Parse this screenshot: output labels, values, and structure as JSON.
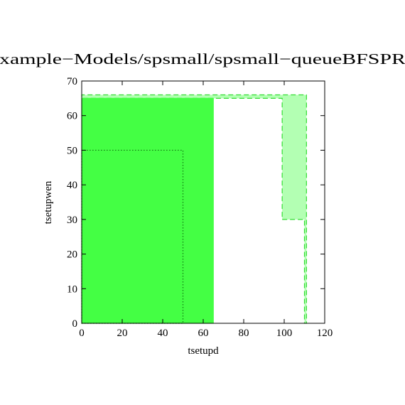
{
  "chart_data": {
    "type": "region",
    "title": "xample−Models/spsmall/spsmall−queueBFSPR",
    "x_label": "tsetupd",
    "y_label": "tsetupwen",
    "xlim": [
      0,
      120
    ],
    "ylim": [
      0,
      70
    ],
    "xticks": [
      0,
      20,
      40,
      60,
      80,
      100,
      120
    ],
    "yticks": [
      0,
      10,
      20,
      30,
      40,
      50,
      60,
      70
    ],
    "series": [
      {
        "fill": "#b3ffb3",
        "color": "#33dd33",
        "line": "dashed",
        "x": [
          99,
          110,
          110,
          111,
          111,
          0,
          0,
          99
        ],
        "y": [
          30,
          30,
          0,
          0,
          66,
          66,
          65,
          65
        ]
      },
      {
        "fill": "#44ff44",
        "color": "#44ff44",
        "line": "solid",
        "x": [
          0,
          65,
          65,
          0
        ],
        "y": [
          0,
          0,
          65,
          65
        ]
      },
      {
        "fill": "none",
        "color": "#117711",
        "line": "dotted",
        "x": [
          0,
          50,
          50,
          0
        ],
        "y": [
          0,
          0,
          50,
          50
        ]
      }
    ]
  }
}
